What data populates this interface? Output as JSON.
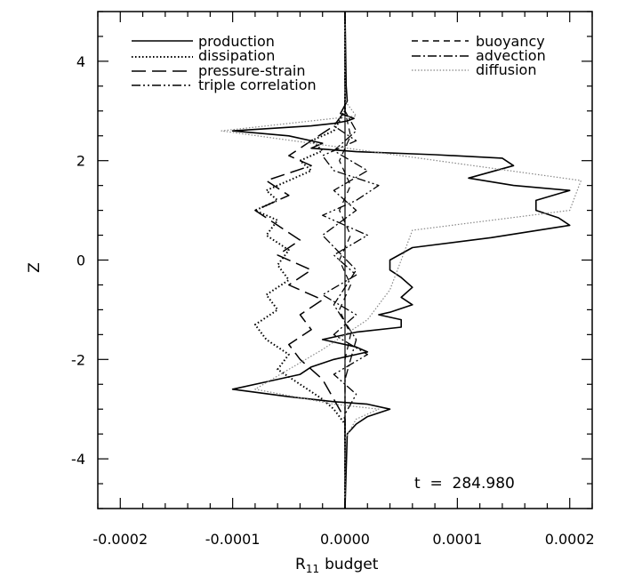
{
  "chart_data": {
    "type": "line",
    "orientation": "profile (value on x, height on y)",
    "xlabel": "R",
    "xlabel_subscript": "11",
    "xlabel_suffix": "budget",
    "ylabel": "Z",
    "xlim": [
      -0.00022,
      0.00022
    ],
    "ylim": [
      -5,
      5
    ],
    "x_ticks": [
      -0.0002,
      -0.0001,
      0.0,
      0.0001,
      0.0002
    ],
    "x_tick_labels": [
      "-0.0002",
      "-0.0001",
      "0.0000",
      "0.0001",
      "0.0002"
    ],
    "y_ticks": [
      -4,
      -2,
      0,
      2,
      4
    ],
    "y_tick_labels": [
      "-4",
      "-2",
      "0",
      "2",
      "4"
    ],
    "grid": false,
    "annotation": "t  =  284.980",
    "legend_left": [
      "production",
      "dissipation",
      "pressure-strain",
      "triple correlation"
    ],
    "legend_right": [
      "buoyancy",
      "advection",
      "diffusion"
    ],
    "series": [
      {
        "name": "production",
        "style": "solid",
        "color": "#000000",
        "x": [
          0,
          1e-06,
          2e-06,
          -4e-06,
          8e-06,
          2e-06,
          -1e-05,
          -3e-05,
          -0.0001,
          -5e-05,
          -2e-05,
          -3e-05,
          1e-05,
          8e-05,
          0.00014,
          0.00015,
          0.00011,
          0.00015,
          0.0002,
          0.00017,
          0.00017,
          0.00019,
          0.0002,
          0.00013,
          6e-05,
          4e-05,
          4e-05,
          5e-05,
          6e-05,
          5e-05,
          6e-05,
          4e-05,
          3e-05,
          5e-05,
          5e-05,
          1e-05,
          -2e-05,
          1e-05,
          2e-05,
          -1e-05,
          -3e-05,
          -4e-05,
          -7e-05,
          -0.0001,
          -5e-05,
          -1e-05,
          2e-05,
          4e-05,
          2e-05,
          1e-05,
          2e-06,
          0
        ],
        "z": [
          5,
          3.5,
          3.2,
          2.95,
          2.85,
          2.8,
          2.75,
          2.7,
          2.6,
          2.5,
          2.35,
          2.25,
          2.18,
          2.12,
          2.05,
          1.9,
          1.65,
          1.5,
          1.4,
          1.2,
          1.0,
          0.85,
          0.7,
          0.45,
          0.25,
          0.0,
          -0.2,
          -0.35,
          -0.55,
          -0.75,
          -0.9,
          -1.05,
          -1.1,
          -1.2,
          -1.35,
          -1.45,
          -1.6,
          -1.75,
          -1.85,
          -2.0,
          -2.15,
          -2.3,
          -2.45,
          -2.6,
          -2.75,
          -2.85,
          -2.9,
          -3.0,
          -3.15,
          -3.3,
          -3.5,
          -5
        ]
      },
      {
        "name": "dissipation",
        "style": "dotted",
        "color": "#000000",
        "x": [
          0,
          0,
          -5e-06,
          -1e-05,
          -3e-05,
          -2e-05,
          -4e-05,
          -3e-05,
          -5e-05,
          -7e-05,
          -6e-05,
          -8e-05,
          -6e-05,
          -7e-05,
          -5e-05,
          -6e-05,
          -5e-05,
          -7e-05,
          -6e-05,
          -8e-05,
          -7e-05,
          -5e-05,
          -6e-05,
          -4e-05,
          -2e-05,
          -1e-05,
          0,
          0
        ],
        "z": [
          5,
          3.0,
          2.8,
          2.6,
          2.4,
          2.2,
          2.0,
          1.8,
          1.6,
          1.4,
          1.2,
          1.0,
          0.8,
          0.5,
          0.2,
          -0.1,
          -0.4,
          -0.7,
          -1.0,
          -1.3,
          -1.6,
          -1.9,
          -2.2,
          -2.5,
          -2.8,
          -3.0,
          -3.3,
          -5
        ]
      },
      {
        "name": "pressure-strain",
        "style": "longdash",
        "color": "#000000",
        "x": [
          0,
          0,
          -1e-05,
          -3e-05,
          -5e-05,
          -3e-05,
          -7e-05,
          -5e-05,
          -8e-05,
          -6e-05,
          -4e-05,
          -6e-05,
          -3e-05,
          -5e-05,
          -2e-05,
          -4e-05,
          -3e-05,
          -5e-05,
          -4e-05,
          -2e-05,
          -1e-05,
          0,
          0
        ],
        "z": [
          5,
          3.0,
          2.7,
          2.4,
          2.1,
          1.9,
          1.6,
          1.3,
          1.0,
          0.7,
          0.4,
          0.1,
          -0.2,
          -0.5,
          -0.8,
          -1.1,
          -1.4,
          -1.7,
          -2.0,
          -2.4,
          -2.8,
          -3.2,
          -5
        ]
      },
      {
        "name": "triple correlation",
        "style": "dashdotdot",
        "color": "#000000",
        "x": [
          0,
          0,
          -1e-05,
          1e-05,
          -2e-05,
          -1e-05,
          3e-05,
          1e-05,
          -2e-05,
          2e-05,
          -1e-05,
          1e-05,
          -2e-05,
          1e-05,
          -1e-05,
          2e-05,
          -1e-05,
          1e-05,
          0,
          0
        ],
        "z": [
          5,
          3.0,
          2.7,
          2.4,
          2.1,
          1.8,
          1.5,
          1.2,
          0.9,
          0.5,
          0.1,
          -0.3,
          -0.7,
          -1.1,
          -1.5,
          -1.9,
          -2.3,
          -2.7,
          -3.1,
          -5
        ]
      },
      {
        "name": "buoyancy",
        "style": "dashed",
        "color": "#000000",
        "x": [
          0,
          0,
          5e-06,
          -5e-06,
          5e-06,
          -5e-06,
          5e-06,
          -5e-06,
          5e-06,
          -5e-06,
          5e-06,
          0,
          0
        ],
        "z": [
          5,
          3.0,
          2.5,
          2.0,
          1.5,
          1.0,
          0.5,
          0.0,
          -0.5,
          -1.0,
          -1.5,
          -2.0,
          -5
        ]
      },
      {
        "name": "advection",
        "style": "dashdot",
        "color": "#000000",
        "x": [
          0,
          0,
          1e-05,
          -1e-05,
          2e-05,
          -1e-05,
          1e-05,
          -2e-05,
          1e-05,
          -1e-05,
          1e-05,
          0,
          0
        ],
        "z": [
          5,
          3.0,
          2.6,
          2.2,
          1.8,
          1.4,
          1.0,
          0.5,
          -0.2,
          -0.9,
          -1.6,
          -2.4,
          -5
        ]
      },
      {
        "name": "diffusion",
        "style": "dotted-gray",
        "color": "#888888",
        "x": [
          0,
          0,
          1e-05,
          -0.00011,
          5e-05,
          0.00021,
          0.0002,
          6e-05,
          5e-05,
          4e-05,
          2e-05,
          -2e-05,
          -8e-05,
          -1e-05,
          3e-05,
          1e-05,
          0,
          0
        ],
        "z": [
          5,
          3.2,
          2.9,
          2.6,
          2.1,
          1.6,
          1.0,
          0.6,
          0.0,
          -0.6,
          -1.2,
          -1.8,
          -2.6,
          -2.9,
          -3.0,
          -3.2,
          -3.6,
          -5
        ]
      }
    ]
  }
}
